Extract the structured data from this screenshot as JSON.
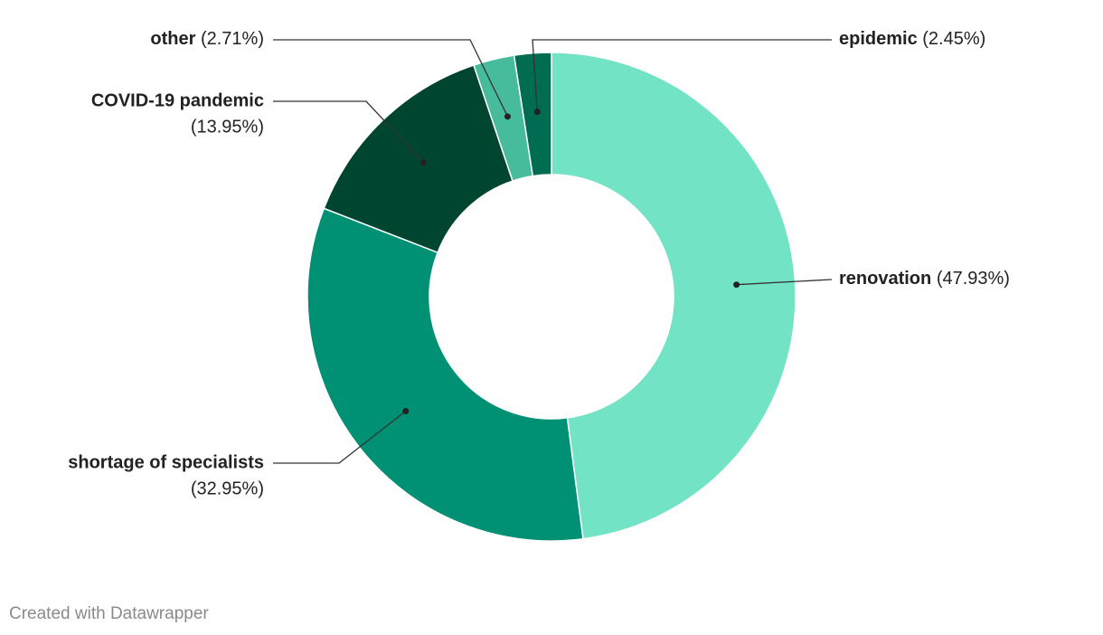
{
  "chart_data": {
    "type": "donut",
    "categories": [
      "renovation",
      "shortage of specialists",
      "COVID-19 pandemic",
      "other",
      "epidemic"
    ],
    "values": [
      47.93,
      32.95,
      13.95,
      2.71,
      2.45
    ],
    "value_labels": [
      "(47.93%)",
      "(32.95%)",
      "(13.95%)",
      "(2.71%)",
      "(2.45%)"
    ],
    "colors": [
      "#73e3c6",
      "#009175",
      "#004530",
      "#46bc9c",
      "#006c52"
    ],
    "credit": "Created with Datawrapper"
  }
}
